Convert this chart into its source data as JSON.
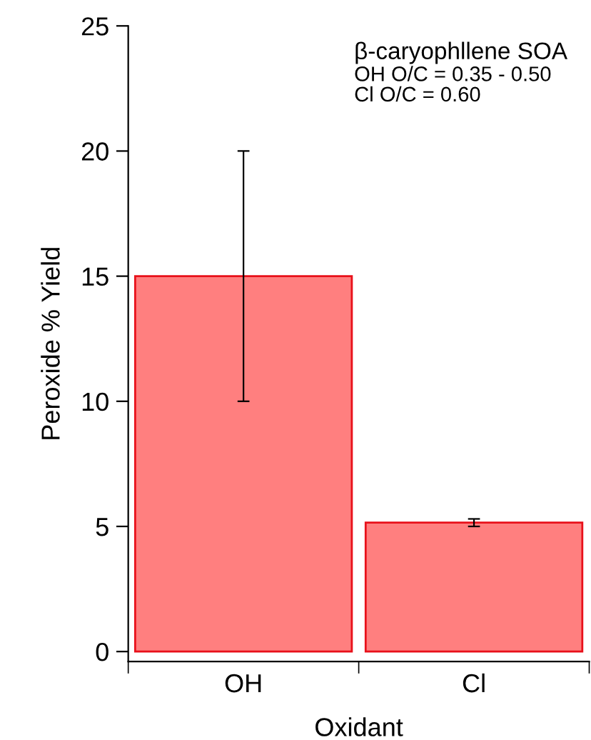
{
  "chart_data": {
    "type": "bar",
    "xlabel": "Oxidant",
    "ylabel": "Peroxide % Yield",
    "categories": [
      "OH",
      "Cl"
    ],
    "values": [
      15,
      5.15
    ],
    "errors": [
      5,
      0.15
    ],
    "color": "#ff7f7f",
    "ylim": [
      -0.4,
      25
    ],
    "yticks": [
      0,
      5,
      10,
      15,
      20,
      25
    ],
    "grid": false,
    "legend": false,
    "annotations": [
      "β-caryophllene SOA",
      "OH O/C = 0.35 - 0.50",
      "Cl O/C = 0.60"
    ]
  }
}
